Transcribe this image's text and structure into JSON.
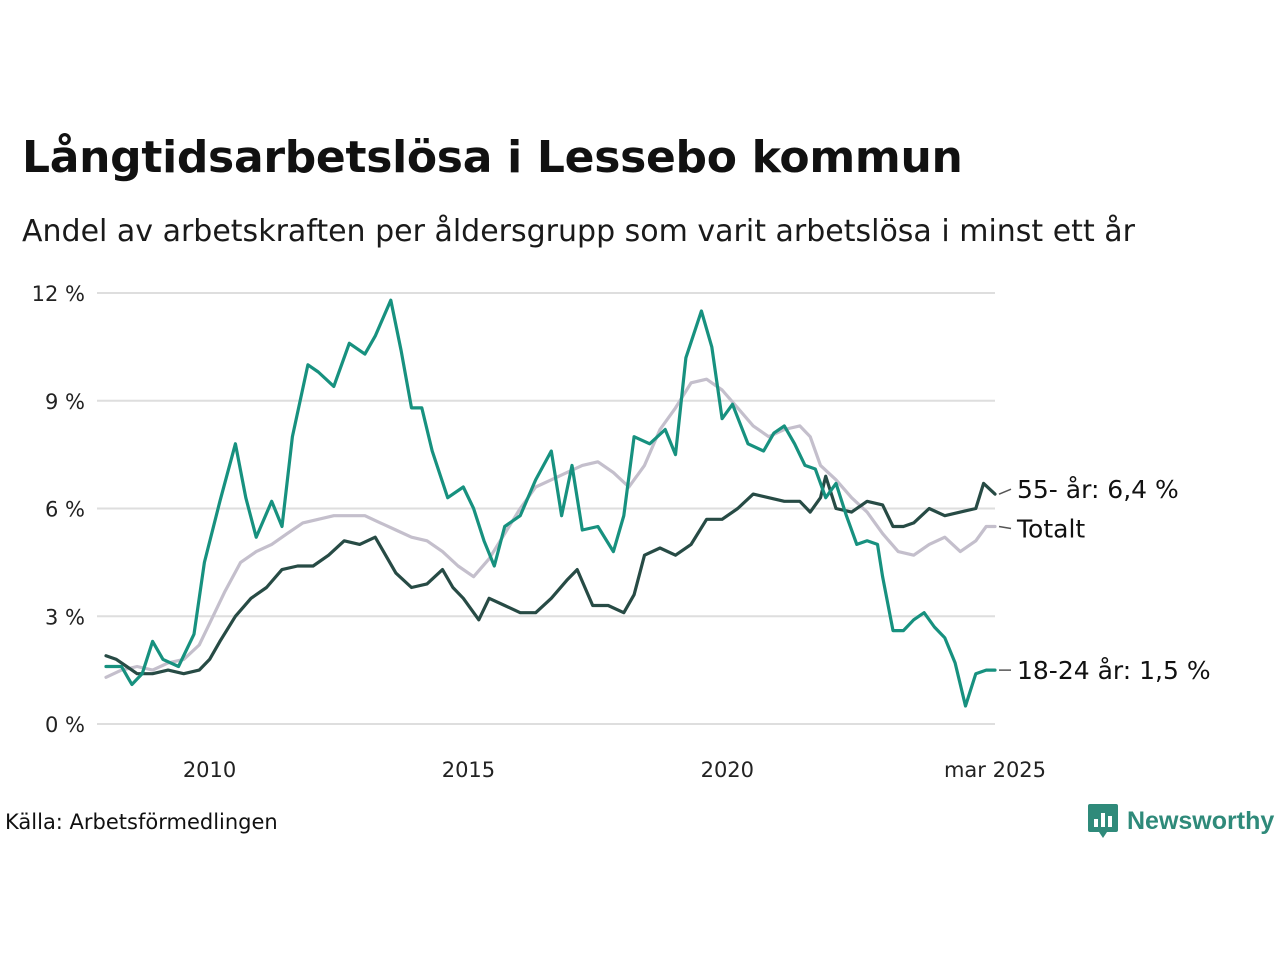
{
  "title": "Långtidsarbetslösa i Lessebo kommun",
  "subtitle": "Andel av arbetskraften per åldersgrupp som varit arbetslösa i minst ett år",
  "source": "Källa: Arbetsförmedlingen",
  "logo": {
    "text": "Newsworthy",
    "icon": "newsworthy-bar-chart-icon",
    "color": "#2f8a7a"
  },
  "chart_data": {
    "type": "line",
    "x_unit": "year",
    "xlim": [
      2008.0,
      2025.17
    ],
    "ylim": [
      0,
      12
    ],
    "y_ticks": [
      0,
      3,
      6,
      9,
      12
    ],
    "y_tick_labels": [
      "0 %",
      "3 %",
      "6 %",
      "9 %",
      "12 %"
    ],
    "x_ticks": [
      2010,
      2015,
      2020,
      2025.17
    ],
    "x_tick_labels": [
      "2010",
      "2015",
      "2020",
      "mar 2025"
    ],
    "grid": "horizontal",
    "legend": "direct-labels-right",
    "series": [
      {
        "id": "totalt",
        "label": "Totalt",
        "color": "#c4bfcc",
        "points": [
          [
            2008.0,
            1.3
          ],
          [
            2008.3,
            1.5
          ],
          [
            2008.6,
            1.6
          ],
          [
            2008.9,
            1.5
          ],
          [
            2009.2,
            1.7
          ],
          [
            2009.5,
            1.8
          ],
          [
            2009.8,
            2.2
          ],
          [
            2010.0,
            2.8
          ],
          [
            2010.3,
            3.7
          ],
          [
            2010.6,
            4.5
          ],
          [
            2010.9,
            4.8
          ],
          [
            2011.2,
            5.0
          ],
          [
            2011.5,
            5.3
          ],
          [
            2011.8,
            5.6
          ],
          [
            2012.1,
            5.7
          ],
          [
            2012.4,
            5.8
          ],
          [
            2012.7,
            5.8
          ],
          [
            2013.0,
            5.8
          ],
          [
            2013.3,
            5.6
          ],
          [
            2013.6,
            5.4
          ],
          [
            2013.9,
            5.2
          ],
          [
            2014.2,
            5.1
          ],
          [
            2014.5,
            4.8
          ],
          [
            2014.8,
            4.4
          ],
          [
            2015.1,
            4.1
          ],
          [
            2015.4,
            4.6
          ],
          [
            2015.7,
            5.3
          ],
          [
            2016.0,
            6.0
          ],
          [
            2016.3,
            6.6
          ],
          [
            2016.6,
            6.8
          ],
          [
            2016.9,
            7.0
          ],
          [
            2017.2,
            7.2
          ],
          [
            2017.5,
            7.3
          ],
          [
            2017.8,
            7.0
          ],
          [
            2018.1,
            6.6
          ],
          [
            2018.4,
            7.2
          ],
          [
            2018.7,
            8.2
          ],
          [
            2019.0,
            8.8
          ],
          [
            2019.3,
            9.5
          ],
          [
            2019.6,
            9.6
          ],
          [
            2019.9,
            9.3
          ],
          [
            2020.2,
            8.8
          ],
          [
            2020.5,
            8.3
          ],
          [
            2020.8,
            8.0
          ],
          [
            2021.1,
            8.2
          ],
          [
            2021.4,
            8.3
          ],
          [
            2021.6,
            8.0
          ],
          [
            2021.8,
            7.2
          ],
          [
            2022.1,
            6.8
          ],
          [
            2022.4,
            6.3
          ],
          [
            2022.7,
            5.9
          ],
          [
            2023.0,
            5.3
          ],
          [
            2023.3,
            4.8
          ],
          [
            2023.6,
            4.7
          ],
          [
            2023.9,
            5.0
          ],
          [
            2024.2,
            5.2
          ],
          [
            2024.5,
            4.8
          ],
          [
            2024.8,
            5.1
          ],
          [
            2025.0,
            5.5
          ],
          [
            2025.17,
            5.5
          ]
        ]
      },
      {
        "id": "55plus",
        "label": "55- år: 6,4 %",
        "color": "#274b45",
        "points": [
          [
            2008.0,
            1.9
          ],
          [
            2008.2,
            1.8
          ],
          [
            2008.4,
            1.6
          ],
          [
            2008.6,
            1.4
          ],
          [
            2008.9,
            1.4
          ],
          [
            2009.2,
            1.5
          ],
          [
            2009.5,
            1.4
          ],
          [
            2009.8,
            1.5
          ],
          [
            2010.0,
            1.8
          ],
          [
            2010.2,
            2.3
          ],
          [
            2010.5,
            3.0
          ],
          [
            2010.8,
            3.5
          ],
          [
            2011.1,
            3.8
          ],
          [
            2011.4,
            4.3
          ],
          [
            2011.7,
            4.4
          ],
          [
            2012.0,
            4.4
          ],
          [
            2012.3,
            4.7
          ],
          [
            2012.6,
            5.1
          ],
          [
            2012.9,
            5.0
          ],
          [
            2013.2,
            5.2
          ],
          [
            2013.4,
            4.7
          ],
          [
            2013.6,
            4.2
          ],
          [
            2013.9,
            3.8
          ],
          [
            2014.2,
            3.9
          ],
          [
            2014.5,
            4.3
          ],
          [
            2014.7,
            3.8
          ],
          [
            2014.9,
            3.5
          ],
          [
            2015.2,
            2.9
          ],
          [
            2015.4,
            3.5
          ],
          [
            2015.7,
            3.3
          ],
          [
            2016.0,
            3.1
          ],
          [
            2016.3,
            3.1
          ],
          [
            2016.6,
            3.5
          ],
          [
            2016.9,
            4.0
          ],
          [
            2017.1,
            4.3
          ],
          [
            2017.4,
            3.3
          ],
          [
            2017.7,
            3.3
          ],
          [
            2018.0,
            3.1
          ],
          [
            2018.2,
            3.6
          ],
          [
            2018.4,
            4.7
          ],
          [
            2018.7,
            4.9
          ],
          [
            2019.0,
            4.7
          ],
          [
            2019.3,
            5.0
          ],
          [
            2019.6,
            5.7
          ],
          [
            2019.9,
            5.7
          ],
          [
            2020.2,
            6.0
          ],
          [
            2020.5,
            6.4
          ],
          [
            2020.8,
            6.3
          ],
          [
            2021.1,
            6.2
          ],
          [
            2021.4,
            6.2
          ],
          [
            2021.6,
            5.9
          ],
          [
            2021.8,
            6.3
          ],
          [
            2021.9,
            6.9
          ],
          [
            2022.1,
            6.0
          ],
          [
            2022.4,
            5.9
          ],
          [
            2022.7,
            6.2
          ],
          [
            2023.0,
            6.1
          ],
          [
            2023.2,
            5.5
          ],
          [
            2023.4,
            5.5
          ],
          [
            2023.6,
            5.6
          ],
          [
            2023.9,
            6.0
          ],
          [
            2024.2,
            5.8
          ],
          [
            2024.5,
            5.9
          ],
          [
            2024.8,
            6.0
          ],
          [
            2024.95,
            6.7
          ],
          [
            2025.17,
            6.4
          ]
        ]
      },
      {
        "id": "18-24",
        "label": "18-24 år: 1,5 %",
        "color": "#17917f",
        "points": [
          [
            2008.0,
            1.6
          ],
          [
            2008.3,
            1.6
          ],
          [
            2008.5,
            1.1
          ],
          [
            2008.7,
            1.4
          ],
          [
            2008.9,
            2.3
          ],
          [
            2009.1,
            1.8
          ],
          [
            2009.4,
            1.6
          ],
          [
            2009.7,
            2.5
          ],
          [
            2009.9,
            4.5
          ],
          [
            2010.2,
            6.2
          ],
          [
            2010.5,
            7.8
          ],
          [
            2010.7,
            6.3
          ],
          [
            2010.9,
            5.2
          ],
          [
            2011.2,
            6.2
          ],
          [
            2011.4,
            5.5
          ],
          [
            2011.6,
            8.0
          ],
          [
            2011.9,
            10.0
          ],
          [
            2012.1,
            9.8
          ],
          [
            2012.4,
            9.4
          ],
          [
            2012.7,
            10.6
          ],
          [
            2013.0,
            10.3
          ],
          [
            2013.2,
            10.8
          ],
          [
            2013.5,
            11.8
          ],
          [
            2013.7,
            10.4
          ],
          [
            2013.9,
            8.8
          ],
          [
            2014.1,
            8.8
          ],
          [
            2014.3,
            7.6
          ],
          [
            2014.6,
            6.3
          ],
          [
            2014.9,
            6.6
          ],
          [
            2015.1,
            6.0
          ],
          [
            2015.3,
            5.1
          ],
          [
            2015.5,
            4.4
          ],
          [
            2015.7,
            5.5
          ],
          [
            2016.0,
            5.8
          ],
          [
            2016.3,
            6.8
          ],
          [
            2016.6,
            7.6
          ],
          [
            2016.8,
            5.8
          ],
          [
            2017.0,
            7.2
          ],
          [
            2017.2,
            5.4
          ],
          [
            2017.5,
            5.5
          ],
          [
            2017.8,
            4.8
          ],
          [
            2018.0,
            5.8
          ],
          [
            2018.2,
            8.0
          ],
          [
            2018.5,
            7.8
          ],
          [
            2018.8,
            8.2
          ],
          [
            2019.0,
            7.5
          ],
          [
            2019.2,
            10.2
          ],
          [
            2019.5,
            11.5
          ],
          [
            2019.7,
            10.5
          ],
          [
            2019.9,
            8.5
          ],
          [
            2020.1,
            8.9
          ],
          [
            2020.4,
            7.8
          ],
          [
            2020.7,
            7.6
          ],
          [
            2020.9,
            8.1
          ],
          [
            2021.1,
            8.3
          ],
          [
            2021.3,
            7.8
          ],
          [
            2021.5,
            7.2
          ],
          [
            2021.7,
            7.1
          ],
          [
            2021.9,
            6.3
          ],
          [
            2022.1,
            6.7
          ],
          [
            2022.3,
            5.8
          ],
          [
            2022.5,
            5.0
          ],
          [
            2022.7,
            5.1
          ],
          [
            2022.9,
            5.0
          ],
          [
            2023.0,
            4.1
          ],
          [
            2023.2,
            2.6
          ],
          [
            2023.4,
            2.6
          ],
          [
            2023.6,
            2.9
          ],
          [
            2023.8,
            3.1
          ],
          [
            2024.0,
            2.7
          ],
          [
            2024.2,
            2.4
          ],
          [
            2024.4,
            1.7
          ],
          [
            2024.6,
            0.5
          ],
          [
            2024.8,
            1.4
          ],
          [
            2025.0,
            1.5
          ],
          [
            2025.17,
            1.5
          ]
        ]
      }
    ]
  }
}
